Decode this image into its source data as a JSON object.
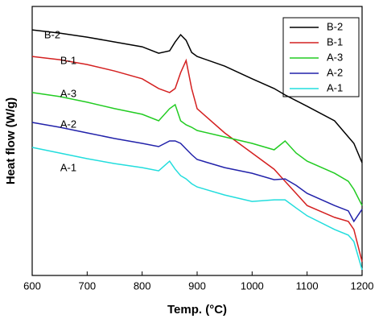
{
  "chart_data": {
    "type": "line",
    "x_label": "Temp. (°C)",
    "y_label": "Heat flow (W/g)",
    "x": [
      600,
      650,
      700,
      750,
      800,
      830,
      850,
      860,
      870,
      880,
      890,
      900,
      950,
      1000,
      1040,
      1060,
      1080,
      1100,
      1150,
      1175,
      1185,
      1200
    ],
    "xlim": [
      600,
      1200
    ],
    "xticks": [
      600,
      700,
      800,
      900,
      1000,
      1100,
      1200
    ],
    "ylim": [
      0,
      100
    ],
    "legend": "upper right",
    "series": [
      {
        "name": "B-2",
        "color": "#000000",
        "values": [
          91.3,
          90.1,
          88.6,
          86.8,
          85.0,
          82.6,
          83.5,
          86.8,
          89.5,
          87.4,
          82.9,
          81.4,
          77.8,
          73.1,
          69.5,
          67.1,
          65.0,
          62.9,
          57.5,
          51.5,
          49.1,
          41.9
        ]
      },
      {
        "name": "B-1",
        "color": "#d42020",
        "values": [
          81.4,
          80.2,
          78.4,
          76.0,
          73.1,
          69.5,
          68.0,
          69.5,
          75.4,
          79.9,
          69.5,
          62.0,
          53.0,
          45.5,
          39.5,
          35.0,
          30.5,
          26.0,
          21.6,
          20.1,
          17.1,
          5.1
        ]
      },
      {
        "name": "A-3",
        "color": "#22cc22",
        "values": [
          68.0,
          66.5,
          64.4,
          62.0,
          59.9,
          57.5,
          62.0,
          63.5,
          57.5,
          56.0,
          55.1,
          53.9,
          51.5,
          49.1,
          46.7,
          50.0,
          45.5,
          42.5,
          38.0,
          35.0,
          32.0,
          26.0
        ]
      },
      {
        "name": "A-2",
        "color": "#2222aa",
        "values": [
          56.9,
          55.1,
          53.0,
          50.9,
          49.1,
          47.9,
          50.0,
          50.0,
          49.1,
          47.0,
          44.9,
          43.1,
          40.1,
          38.0,
          35.6,
          35.9,
          33.5,
          30.5,
          26.0,
          24.0,
          20.1,
          24.6
        ]
      },
      {
        "name": "A-1",
        "color": "#22dddd",
        "values": [
          47.6,
          45.5,
          43.4,
          41.6,
          40.1,
          38.9,
          42.5,
          39.5,
          37.1,
          35.9,
          34.1,
          32.9,
          29.9,
          27.5,
          28.1,
          28.1,
          25.1,
          22.2,
          17.1,
          15.0,
          12.6,
          2.1
        ]
      }
    ]
  }
}
